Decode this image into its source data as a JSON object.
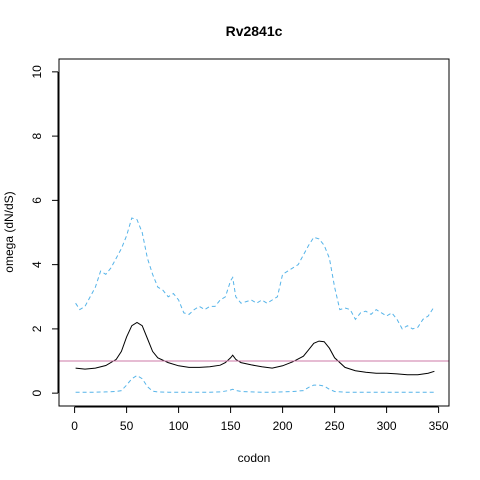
{
  "chart_data": {
    "type": "line",
    "title": "Rv2841c",
    "xlabel": "codon",
    "ylabel": "omega (dN/dS)",
    "xlim": [
      -15,
      360
    ],
    "ylim": [
      -0.4,
      10.4
    ],
    "x_ticks": [
      0,
      50,
      100,
      150,
      200,
      250,
      300,
      350
    ],
    "y_ticks": [
      0,
      2,
      4,
      6,
      8,
      10
    ],
    "reference_line": {
      "y": 1,
      "color": "#cc79a7"
    },
    "series": [
      {
        "style": "solid",
        "color": "#000000",
        "x": [
          1,
          10,
          20,
          30,
          40,
          45,
          50,
          55,
          60,
          65,
          70,
          75,
          80,
          90,
          100,
          110,
          120,
          130,
          140,
          145,
          150,
          152,
          155,
          160,
          170,
          180,
          190,
          200,
          210,
          220,
          225,
          230,
          235,
          240,
          245,
          250,
          260,
          270,
          280,
          290,
          300,
          310,
          320,
          330,
          340,
          346
        ],
        "y": [
          0.78,
          0.75,
          0.78,
          0.86,
          1.05,
          1.3,
          1.75,
          2.1,
          2.2,
          2.1,
          1.7,
          1.3,
          1.1,
          0.95,
          0.85,
          0.8,
          0.8,
          0.82,
          0.87,
          0.95,
          1.1,
          1.18,
          1.05,
          0.95,
          0.88,
          0.82,
          0.78,
          0.85,
          0.98,
          1.15,
          1.35,
          1.55,
          1.62,
          1.6,
          1.4,
          1.1,
          0.8,
          0.7,
          0.65,
          0.62,
          0.62,
          0.6,
          0.57,
          0.57,
          0.62,
          0.68
        ]
      },
      {
        "style": "dashed",
        "color": "#56b4e9",
        "x": [
          1,
          5,
          10,
          15,
          20,
          25,
          30,
          35,
          40,
          45,
          50,
          55,
          60,
          65,
          70,
          75,
          80,
          85,
          90,
          95,
          100,
          105,
          110,
          115,
          120,
          125,
          130,
          135,
          140,
          145,
          150,
          152,
          155,
          160,
          165,
          170,
          175,
          180,
          185,
          190,
          195,
          200,
          205,
          210,
          215,
          220,
          225,
          230,
          235,
          240,
          245,
          250,
          255,
          260,
          265,
          270,
          275,
          280,
          285,
          290,
          295,
          300,
          305,
          310,
          315,
          320,
          325,
          330,
          335,
          340,
          346
        ],
        "y": [
          2.8,
          2.6,
          2.7,
          3.0,
          3.3,
          3.8,
          3.7,
          3.9,
          4.2,
          4.5,
          4.9,
          5.45,
          5.4,
          5.0,
          4.2,
          3.7,
          3.3,
          3.2,
          3.0,
          3.1,
          2.9,
          2.5,
          2.45,
          2.6,
          2.7,
          2.6,
          2.7,
          2.7,
          2.9,
          3.0,
          3.5,
          3.6,
          3.0,
          2.8,
          2.85,
          2.9,
          2.8,
          2.9,
          2.8,
          2.9,
          3.0,
          3.7,
          3.8,
          3.9,
          4.0,
          4.3,
          4.6,
          4.85,
          4.8,
          4.6,
          4.2,
          3.3,
          2.6,
          2.65,
          2.6,
          2.3,
          2.5,
          2.55,
          2.45,
          2.6,
          2.5,
          2.4,
          2.5,
          2.3,
          2.0,
          2.1,
          2.0,
          2.05,
          2.3,
          2.4,
          2.7
        ]
      },
      {
        "style": "dashed",
        "color": "#56b4e9",
        "x": [
          1,
          10,
          20,
          30,
          40,
          45,
          50,
          55,
          60,
          65,
          70,
          75,
          80,
          90,
          100,
          110,
          120,
          130,
          140,
          148,
          152,
          156,
          160,
          170,
          180,
          190,
          200,
          210,
          220,
          225,
          230,
          235,
          240,
          245,
          250,
          260,
          270,
          280,
          290,
          300,
          310,
          320,
          330,
          340,
          346
        ],
        "y": [
          0.03,
          0.03,
          0.03,
          0.04,
          0.05,
          0.08,
          0.25,
          0.45,
          0.55,
          0.45,
          0.2,
          0.06,
          0.04,
          0.03,
          0.03,
          0.03,
          0.03,
          0.03,
          0.04,
          0.08,
          0.12,
          0.08,
          0.05,
          0.04,
          0.03,
          0.03,
          0.04,
          0.05,
          0.08,
          0.18,
          0.25,
          0.25,
          0.22,
          0.12,
          0.05,
          0.03,
          0.03,
          0.03,
          0.03,
          0.03,
          0.03,
          0.03,
          0.03,
          0.03,
          0.03
        ]
      }
    ]
  }
}
